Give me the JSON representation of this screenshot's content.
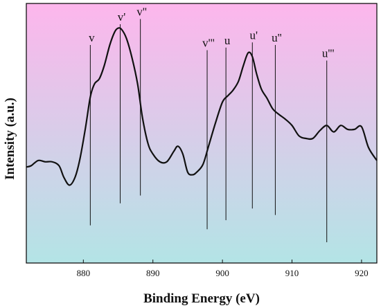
{
  "chart_data": {
    "type": "line",
    "xlabel": "Binding Energy (eV)",
    "ylabel": "Intensity (a.u.)",
    "xlim": [
      871.8,
      922.2
    ],
    "ylim": [
      0,
      100
    ],
    "xticks": [
      880,
      890,
      900,
      910,
      920
    ],
    "y_ticks_shown": false,
    "grid": false,
    "background_gradient": [
      "#fdb6ec",
      "#b3e4e6"
    ],
    "series": [
      {
        "color": "#111111",
        "x": [
          871.8,
          872.5,
          873.5,
          874.5,
          875.5,
          876.5,
          877.2,
          878.0,
          878.8,
          879.5,
          880.3,
          881.0,
          881.6,
          882.3,
          883.0,
          883.8,
          884.5,
          885.0,
          885.5,
          886.2,
          887.0,
          887.8,
          888.5,
          889.3,
          890.0,
          891.0,
          892.0,
          893.0,
          893.6,
          894.3,
          895.0,
          895.7,
          896.3,
          897.2,
          898.0,
          899.0,
          900.0,
          900.8,
          901.5,
          902.3,
          903.0,
          903.7,
          904.3,
          904.9,
          905.6,
          906.4,
          907.2,
          908.0,
          909.0,
          910.0,
          911.0,
          912.0,
          913.0,
          914.0,
          915.0,
          916.0,
          917.0,
          918.0,
          919.0,
          920.0,
          921.0,
          922.2
        ],
        "y": [
          37.0,
          37.5,
          39.5,
          39.0,
          39.0,
          37.5,
          33.0,
          30.0,
          33.0,
          40.0,
          52.0,
          64.0,
          69.0,
          71.0,
          76.0,
          84.0,
          89.0,
          90.5,
          90.0,
          86.5,
          79.0,
          69.0,
          56.0,
          46.0,
          42.0,
          39.0,
          39.0,
          43.0,
          45.0,
          42.0,
          35.0,
          34.0,
          35.0,
          38.0,
          45.0,
          54.0,
          62.0,
          64.5,
          66.5,
          70.0,
          76.0,
          81.0,
          79.5,
          73.0,
          67.0,
          63.5,
          59.5,
          57.5,
          55.5,
          53.0,
          49.0,
          48.0,
          48.0,
          51.0,
          53.0,
          50.5,
          53.0,
          51.5,
          51.5,
          52.5,
          44.5,
          39.5
        ]
      }
    ],
    "peak_markers": [
      {
        "label": "v",
        "x": 881.0,
        "y_top": 84.0,
        "y_bottom": 14.5
      },
      {
        "label": "v'",
        "x": 885.3,
        "y_top": 92.0,
        "y_bottom": 23.0
      },
      {
        "label": "v''",
        "x": 888.2,
        "y_top": 94.0,
        "y_bottom": 26.0
      },
      {
        "label": "v'''",
        "x": 897.8,
        "y_top": 82.0,
        "y_bottom": 13.0
      },
      {
        "label": "u",
        "x": 900.5,
        "y_top": 83.0,
        "y_bottom": 16.5
      },
      {
        "label": "u'",
        "x": 904.3,
        "y_top": 85.0,
        "y_bottom": 21.0
      },
      {
        "label": "u''",
        "x": 907.6,
        "y_top": 84.0,
        "y_bottom": 18.5
      },
      {
        "label": "u'''",
        "x": 915.0,
        "y_top": 78.0,
        "y_bottom": 8.0
      }
    ]
  }
}
